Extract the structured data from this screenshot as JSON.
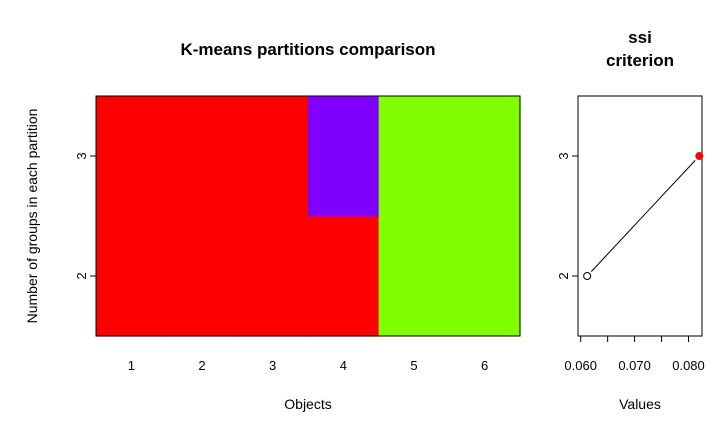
{
  "chart_data": [
    {
      "type": "heatmap",
      "title": "K-means partitions comparison",
      "xlabel": "Objects",
      "ylabel": "Number of groups in each partition",
      "x_categories": [
        "1",
        "2",
        "3",
        "4",
        "5",
        "6"
      ],
      "y_categories": [
        "2",
        "3"
      ],
      "cluster_colors": [
        "#ff0000",
        "#80ff00",
        "#8000ff"
      ],
      "rows": [
        {
          "k": "2",
          "assignments": [
            1,
            1,
            1,
            1,
            2,
            2
          ]
        },
        {
          "k": "3",
          "assignments": [
            1,
            1,
            1,
            3,
            2,
            2
          ]
        }
      ]
    },
    {
      "type": "scatter",
      "title_lines": [
        "ssi",
        "criterion"
      ],
      "xlabel": "Values",
      "ylabel": "",
      "xlim": [
        0.0595,
        0.0825
      ],
      "ylim": [
        1.5,
        3.5
      ],
      "x_ticks": [
        "0.060",
        "0.065",
        "0.070",
        "0.075",
        "0.080"
      ],
      "x_tick_labels_shown": [
        "0.060",
        "",
        "0.070",
        "",
        "0.080"
      ],
      "y_ticks": [
        "2",
        "3"
      ],
      "points": [
        {
          "x": 0.0612,
          "y": 2,
          "style": "open"
        },
        {
          "x": 0.082,
          "y": 3,
          "style": "filled",
          "color": "#ff0000"
        }
      ],
      "connect_line": true
    }
  ]
}
